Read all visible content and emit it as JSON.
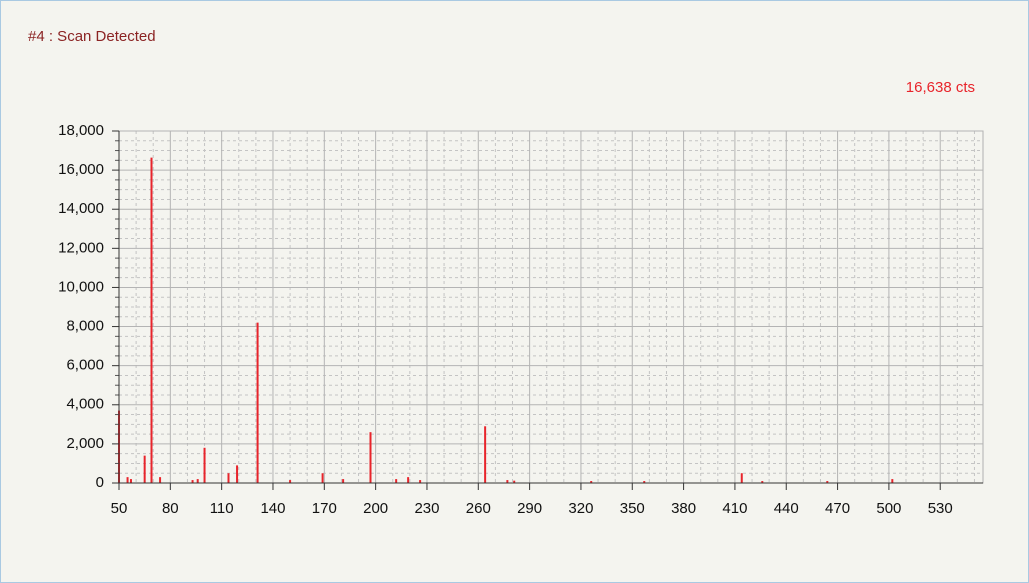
{
  "chart_data": {
    "type": "stem",
    "title": "#4 : Scan Detected",
    "annotation": "16,638 cts",
    "color": "#e8242b",
    "x": [
      50,
      55,
      57,
      65,
      69,
      74,
      93,
      96,
      100,
      114,
      119,
      131,
      150,
      169,
      181,
      197,
      212,
      219,
      226,
      264,
      277,
      281,
      326,
      357,
      414,
      426,
      464,
      502
    ],
    "values": [
      3700,
      300,
      200,
      1400,
      16638,
      300,
      150,
      200,
      1800,
      500,
      900,
      8200,
      150,
      500,
      200,
      2600,
      200,
      300,
      150,
      2900,
      150,
      120,
      100,
      100,
      500,
      100,
      100,
      200
    ],
    "xlim": [
      50,
      555
    ],
    "ylim": [
      0,
      18000
    ],
    "xticks": [
      50,
      80,
      110,
      140,
      170,
      200,
      230,
      260,
      290,
      320,
      350,
      380,
      410,
      440,
      470,
      500,
      530
    ],
    "yticks": [
      0,
      {
        "value": 2000,
        "label": "2,000"
      },
      {
        "value": 4000,
        "label": "4,000"
      },
      {
        "value": 6000,
        "label": "6,000"
      },
      {
        "value": 8000,
        "label": "8,000"
      },
      {
        "value": 10000,
        "label": "10,000"
      },
      {
        "value": 12000,
        "label": "12,000"
      },
      {
        "value": 14000,
        "label": "14,000"
      },
      {
        "value": 16000,
        "label": "16,000"
      },
      {
        "value": 18000,
        "label": "18,000"
      }
    ],
    "grid": true,
    "minor_grid": true
  }
}
